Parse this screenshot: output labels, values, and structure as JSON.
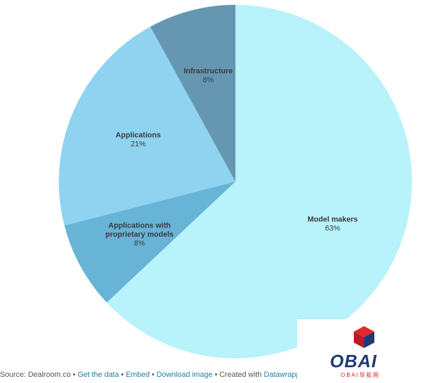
{
  "chart_data": {
    "type": "pie",
    "slices": [
      {
        "label": "Model makers",
        "value": 63,
        "value_label": "63%",
        "color": "#b8f2fb"
      },
      {
        "label": "Applications with proprietary models",
        "label_lines": [
          "Applications with",
          "proprietary models"
        ],
        "value": 8,
        "value_label": "8%",
        "color": "#67b4d6"
      },
      {
        "label": "Applications",
        "value": 21,
        "value_label": "21%",
        "color": "#8fd3f0"
      },
      {
        "label": "Infrastructure",
        "value": 8,
        "value_label": "8%",
        "color": "#6597b2"
      }
    ],
    "start_angle_deg": 0,
    "direction": "clockwise"
  },
  "footer": {
    "source": "Source: Dealroom.co",
    "get_data": "Get the data",
    "embed": "Embed",
    "download": "Download image",
    "created_with": "Created with",
    "tool": "Datawrapper",
    "separator": "•"
  },
  "watermark": {
    "text": "OBAI",
    "sub": "OBAI导航网",
    "cube_red": "#e0282e",
    "cube_blue": "#1f3b73"
  }
}
